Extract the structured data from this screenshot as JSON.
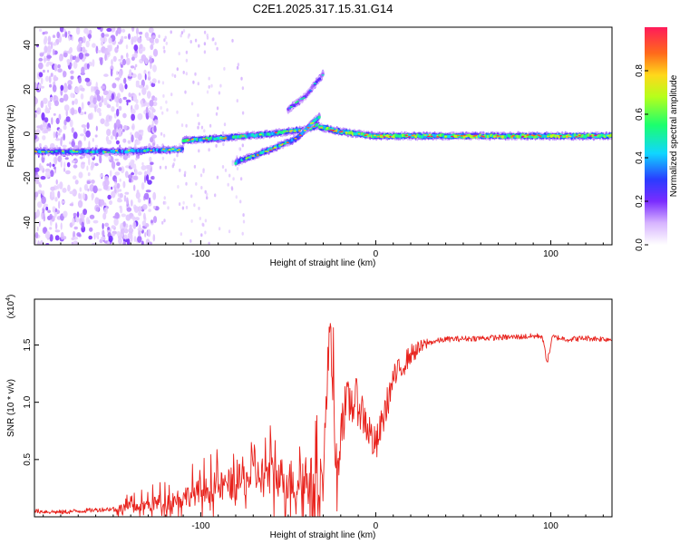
{
  "title": "C2E1.2025.317.15.31.G14",
  "colors": {
    "snr_line": "#e8211b",
    "axis": "#000000",
    "background": "#ffffff"
  },
  "chart_data": [
    {
      "type": "heatmap",
      "name": "spectrogram",
      "xlabel": "Height of straight line (km)",
      "ylabel": "Frequency (Hz)",
      "xlim": [
        -195,
        135
      ],
      "ylim": [
        -50,
        48
      ],
      "xticks": [
        -100,
        0,
        100
      ],
      "yticks": [
        -40,
        -20,
        0,
        20,
        40
      ],
      "colorbar": {
        "label": "Normalized spectral amplitude",
        "range": [
          0,
          1
        ],
        "ticks": [
          "0.0",
          "0.2",
          "0.4",
          "0.6",
          "0.8"
        ],
        "tick_values": [
          0.0,
          0.2,
          0.4,
          0.6,
          0.8
        ]
      },
      "tracks": [
        {
          "name": "main-trace-low",
          "x": [
            -195,
            -150,
            -110
          ],
          "freq": [
            -8,
            -8,
            -7
          ],
          "amplitude": 0.35
        },
        {
          "name": "main-trace-rise",
          "x": [
            -110,
            -90,
            -60,
            -40,
            -32
          ],
          "freq": [
            -3,
            -2,
            0,
            2,
            4
          ],
          "amplitude": 0.45
        },
        {
          "name": "main-trace-flat",
          "x": [
            -32,
            -20,
            0,
            40,
            90,
            135
          ],
          "freq": [
            3,
            1,
            -1,
            -1,
            -1,
            -1
          ],
          "amplitude": 0.55
        },
        {
          "name": "branch-upper",
          "x": [
            -50,
            -40,
            -30
          ],
          "freq": [
            11,
            17,
            27
          ],
          "amplitude": 0.2
        },
        {
          "name": "branch-lower",
          "x": [
            -80,
            -60,
            -45,
            -32
          ],
          "freq": [
            -13,
            -7,
            -2,
            8
          ],
          "amplitude": 0.4
        }
      ]
    },
    {
      "type": "line",
      "name": "snr",
      "xlabel": "Height of straight line (km)",
      "ylabel": "SNR (10 * v/v)",
      "scale_label": "(x10",
      "scale_exponent": "4",
      "xlim": [
        -195,
        135
      ],
      "ylim": [
        0,
        1.9
      ],
      "xticks": [
        -100,
        0,
        100
      ],
      "yticks": [
        0.5,
        1.0,
        1.5
      ],
      "ytick_labels": [
        "0.5",
        "1.0",
        "1.5"
      ],
      "series": [
        {
          "name": "SNR",
          "x": [
            -195,
            -180,
            -160,
            -140,
            -120,
            -100,
            -85,
            -70,
            -60,
            -50,
            -40,
            -30,
            -26,
            -22,
            -20,
            -15,
            -10,
            -5,
            0,
            5,
            10,
            20,
            30,
            40,
            60,
            80,
            95,
            98,
            101,
            110,
            120,
            135
          ],
          "y": [
            0.05,
            0.04,
            0.06,
            0.08,
            0.13,
            0.22,
            0.28,
            0.35,
            0.38,
            0.32,
            0.3,
            0.35,
            1.75,
            0.2,
            0.85,
            1.0,
            1.0,
            0.8,
            0.6,
            0.9,
            1.2,
            1.42,
            1.52,
            1.55,
            1.56,
            1.57,
            1.58,
            1.35,
            1.57,
            1.55,
            1.56,
            1.55
          ]
        }
      ]
    }
  ]
}
